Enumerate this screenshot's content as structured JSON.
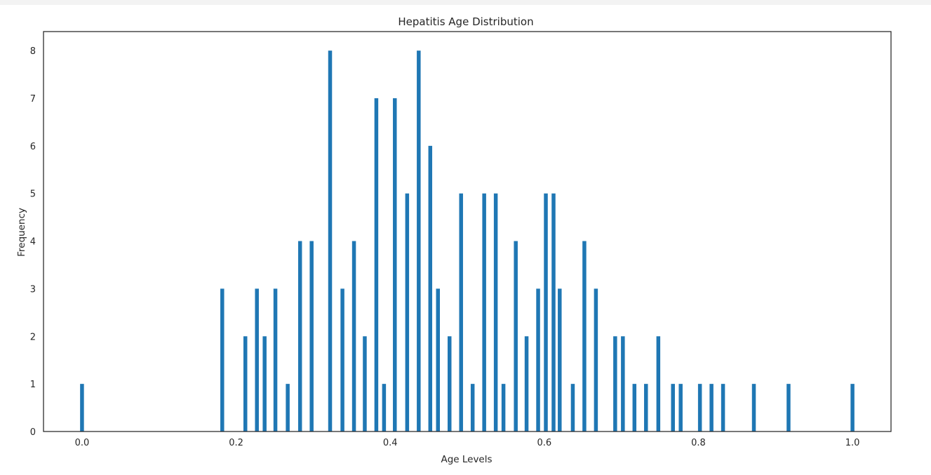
{
  "chart_data": {
    "type": "bar",
    "title": "Hepatitis Age Distribution",
    "xlabel": "Age Levels",
    "ylabel": "Frequency",
    "xlim": [
      -0.05,
      1.05
    ],
    "ylim": [
      0,
      8.4
    ],
    "xticks": [
      "0.0",
      "0.2",
      "0.4",
      "0.6",
      "0.8",
      "1.0"
    ],
    "xtick_values": [
      0.0,
      0.2,
      0.4,
      0.6,
      0.8,
      1.0
    ],
    "yticks": [
      "0",
      "1",
      "2",
      "3",
      "4",
      "5",
      "6",
      "7",
      "8"
    ],
    "ytick_values": [
      0,
      1,
      2,
      3,
      4,
      5,
      6,
      7,
      8
    ],
    "bin_width": 0.005,
    "grid": false,
    "color": "#1f77b4",
    "x": [
      0.0,
      0.182,
      0.212,
      0.227,
      0.237,
      0.251,
      0.267,
      0.283,
      0.298,
      0.322,
      0.338,
      0.353,
      0.367,
      0.382,
      0.392,
      0.406,
      0.422,
      0.437,
      0.452,
      0.462,
      0.477,
      0.492,
      0.507,
      0.522,
      0.537,
      0.547,
      0.563,
      0.577,
      0.592,
      0.602,
      0.612,
      0.62,
      0.637,
      0.652,
      0.667,
      0.692,
      0.702,
      0.717,
      0.732,
      0.748,
      0.767,
      0.777,
      0.802,
      0.817,
      0.832,
      0.872,
      0.917,
      1.0
    ],
    "values": [
      1,
      3,
      2,
      3,
      2,
      3,
      1,
      4,
      4,
      8,
      3,
      4,
      2,
      7,
      1,
      7,
      5,
      8,
      6,
      3,
      2,
      5,
      1,
      5,
      5,
      1,
      4,
      2,
      3,
      5,
      5,
      3,
      1,
      4,
      3,
      2,
      2,
      1,
      1,
      2,
      1,
      1,
      1,
      1,
      1,
      1,
      1,
      1
    ]
  }
}
